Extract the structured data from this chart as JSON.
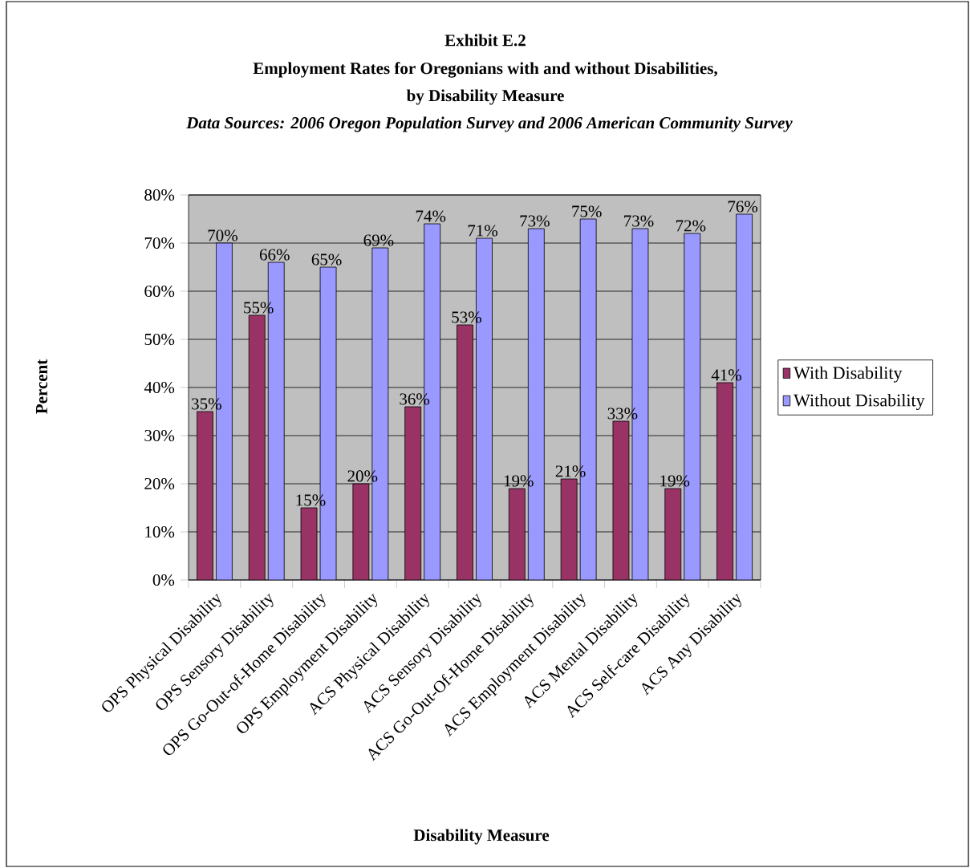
{
  "chart_data": {
    "type": "bar",
    "title": "Exhibit E.2",
    "subtitle": "Employment Rates for Oregonians with and without Disabilities,",
    "annotations": [
      "by Disability Measure",
      "Data Sources: 2006 Oregon Population Survey and 2006 American Community Survey"
    ],
    "xlabel": "Disability Measure",
    "ylabel": "Percent",
    "categories": [
      "OPS Physical Disability",
      "OPS Sensory Disability",
      "OPS Go-Out-of-Home Disability",
      "OPS Employment Disability",
      "ACS Physical Disability",
      "ACS Sensory Disability",
      "ACS Go-Out-Of-Home Disability",
      "ACS Employment Disability",
      "ACS Mental Disability",
      "ACS Self-care Disability",
      "ACS Any Disability"
    ],
    "series": [
      {
        "name": "With Disability",
        "color": "#993366",
        "values": [
          35,
          55,
          15,
          20,
          36,
          53,
          19,
          21,
          33,
          19,
          41
        ],
        "value_labels": [
          "35%",
          "55%",
          "15%",
          "20%",
          "36%",
          "53%",
          "19%",
          "21%",
          "33%",
          "19%",
          "41%"
        ]
      },
      {
        "name": "Without Disability",
        "color": "#9999ff",
        "values": [
          70,
          66,
          65,
          69,
          74,
          71,
          73,
          75,
          73,
          72,
          76
        ],
        "value_labels": [
          "70%",
          "66%",
          "65%",
          "69%",
          "74%",
          "71%",
          "73%",
          "75%",
          "73%",
          "72%",
          "76%"
        ]
      }
    ],
    "ylim": [
      0,
      80
    ],
    "yticks": [
      {
        "value": 0,
        "label": "0%"
      },
      {
        "value": 10,
        "label": "10%"
      },
      {
        "value": 20,
        "label": "20%"
      },
      {
        "value": 30,
        "label": "30%"
      },
      {
        "value": 40,
        "label": "40%"
      },
      {
        "value": 50,
        "label": "50%"
      },
      {
        "value": 60,
        "label": "60%"
      },
      {
        "value": 70,
        "label": "70%"
      },
      {
        "value": 80,
        "label": "80%"
      }
    ],
    "grid": "y",
    "legend": "right"
  }
}
